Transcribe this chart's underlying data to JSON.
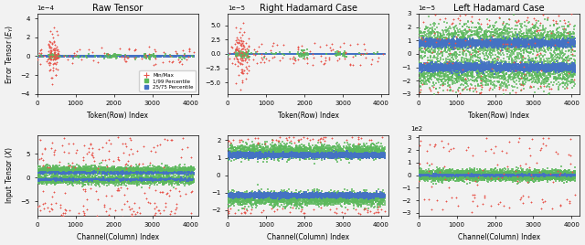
{
  "titles": [
    "Raw Tensor",
    "Right Hadamard Case",
    "Left Hadamard Case"
  ],
  "row_labels": [
    "Error Tensor ($E_Y$)",
    "Input Tensor ($X$)"
  ],
  "xlabel_top": "Token(Row) Index",
  "xlabel_bottom": "Channel(Column) Index",
  "x_max": 4096,
  "colors": {
    "minmax": "#e8534a",
    "p1_99": "#5cb85c",
    "p25_75": "#4472c4"
  },
  "legend_labels": [
    "Min/Max",
    "1/99 Percentile",
    "25/75 Percentile"
  ],
  "background_color": "#f2f2f2"
}
